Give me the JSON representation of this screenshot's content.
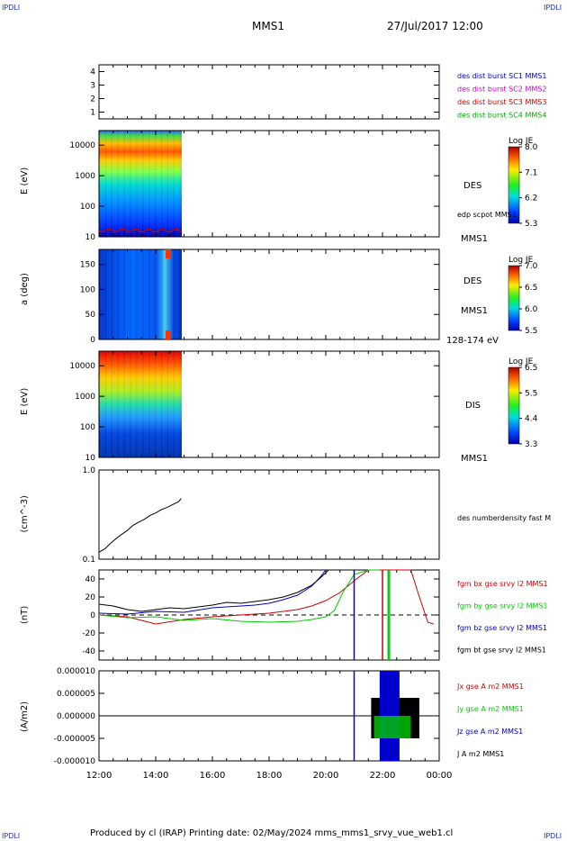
{
  "header": {
    "corner_left": "IPDLI",
    "corner_right": "IPDLI",
    "spacecraft": "MMS1",
    "date_time": "27/Jul/2017 12:00"
  },
  "footer": {
    "produced": "Produced by cl (IRAP)   Printing date: 02/May/2024   mms_mms1_srvy_vue_web1.cl",
    "corner_left": "IPDLI",
    "corner_right": "IPDLI"
  },
  "colors": {
    "mms1": "#0000cc",
    "mms2": "#cc00cc",
    "mms3": "#cc0000",
    "mms4": "#00aa00",
    "bx": "#cc0000",
    "by": "#00cc00",
    "bz": "#0000cc",
    "bt": "#000000"
  },
  "chart_data": [
    {
      "type": "line",
      "panel": "burst-availability",
      "ylim": [
        0.5,
        4.5
      ],
      "yticks": [
        "1",
        "2",
        "3",
        "4"
      ],
      "legend": [
        {
          "label": "des dist burst SC1 MMS1",
          "color": "#0000cc"
        },
        {
          "label": "des dist burst SC2 MMS2",
          "color": "#cc00cc"
        },
        {
          "label": "des dist burst SC3 MMS3",
          "color": "#cc0000"
        },
        {
          "label": "des dist burst SC4 MMS4",
          "color": "#00aa00"
        }
      ]
    },
    {
      "type": "heatmap",
      "panel": "des-energy-spectrogram",
      "ylabel": "E (eV)",
      "yscale": "log",
      "ylim": [
        10,
        30000
      ],
      "yticks": [
        "10",
        "100",
        "1000",
        "10000"
      ],
      "data_x_range": [
        "12:00",
        "14:55"
      ],
      "colorbar": {
        "title": "Log JE",
        "ticks": [
          "8.0",
          "7.1",
          "6.2",
          "5.3"
        ]
      },
      "right_labels": [
        "DES",
        "edp scpot MMS1",
        "MMS1"
      ]
    },
    {
      "type": "heatmap",
      "panel": "des-pitch-angle",
      "ylabel": "a (deg)",
      "ylim": [
        0,
        180
      ],
      "yticks": [
        "0",
        "50",
        "100",
        "150"
      ],
      "data_x_range": [
        "12:00",
        "14:55"
      ],
      "colorbar": {
        "title": "Log JE",
        "ticks": [
          "7.0",
          "6.5",
          "6.0",
          "5.5"
        ]
      },
      "right_labels": [
        "DES",
        "MMS1",
        "128-174 eV"
      ]
    },
    {
      "type": "heatmap",
      "panel": "dis-energy-spectrogram",
      "ylabel": "E (eV)",
      "yscale": "log",
      "ylim": [
        10,
        30000
      ],
      "yticks": [
        "10",
        "100",
        "1000",
        "10000"
      ],
      "data_x_range": [
        "12:00",
        "14:55"
      ],
      "colorbar": {
        "title": "Log JE",
        "ticks": [
          "6.5",
          "5.5",
          "4.4",
          "3.3"
        ]
      },
      "right_labels": [
        "DIS",
        "MMS1"
      ]
    },
    {
      "type": "line",
      "panel": "density",
      "ylabel": "(cm^-3)",
      "yscale": "log",
      "ylim": [
        0.1,
        1.0
      ],
      "yticks": [
        "0.1",
        "1.0"
      ],
      "series": [
        {
          "name": "des numberdensity fast M",
          "x": [
            12.0,
            12.2,
            12.4,
            12.6,
            12.8,
            13.0,
            13.2,
            13.4,
            13.6,
            13.8,
            14.0,
            14.2,
            14.4,
            14.6,
            14.8,
            14.9
          ],
          "values": [
            0.12,
            0.13,
            0.15,
            0.17,
            0.19,
            0.21,
            0.24,
            0.26,
            0.28,
            0.31,
            0.33,
            0.36,
            0.38,
            0.41,
            0.44,
            0.48
          ],
          "color": "#000000"
        }
      ]
    },
    {
      "type": "line",
      "panel": "magnetic-field",
      "ylabel": "(nT)",
      "ylim": [
        -50,
        50
      ],
      "yticks": [
        "-40",
        "-20",
        "0",
        "20",
        "40"
      ],
      "series": [
        {
          "name": "fgm bx gse srvy l2 MMS1",
          "color": "#cc0000",
          "x": [
            12.0,
            13.0,
            14.0,
            15.0,
            16.0,
            17.0,
            18.0,
            18.5,
            19.0,
            19.5,
            20.0,
            20.5,
            21.0,
            21.5,
            22.0,
            22.5,
            23.0,
            23.3,
            23.6,
            23.8
          ],
          "values": [
            0,
            -2,
            -10,
            -5,
            -2,
            0,
            2,
            4,
            6,
            10,
            16,
            25,
            38,
            50,
            50,
            50,
            50,
            20,
            -8,
            -10
          ]
        },
        {
          "name": "fgm by gse srvy l2 MMS1",
          "color": "#00cc00",
          "x": [
            12.0,
            13.0,
            14.0,
            15.0,
            16.0,
            17.0,
            18.0,
            19.0,
            19.5,
            20.0,
            20.3,
            20.6,
            21.0,
            21.5,
            21.9
          ],
          "values": [
            0,
            -3,
            -2,
            -6,
            -4,
            -7,
            -8,
            -7,
            -5,
            -2,
            5,
            25,
            45,
            50,
            50
          ]
        },
        {
          "name": "fgm bz gse srvy l2 MMS1",
          "color": "#0000cc",
          "x": [
            12.0,
            13.0,
            14.0,
            15.0,
            16.0,
            17.0,
            17.5,
            18.0,
            18.5,
            19.0,
            19.5,
            19.8,
            20.0
          ],
          "values": [
            2,
            1,
            4,
            3,
            8,
            10,
            11,
            13,
            17,
            22,
            32,
            42,
            50
          ]
        },
        {
          "name": "fgm bt gse srvy l2 MMS1",
          "color": "#000000",
          "x": [
            12.0,
            12.5,
            13.0,
            13.5,
            14.0,
            14.5,
            15.0,
            15.5,
            16.0,
            16.5,
            17.0,
            17.5,
            18.0,
            18.5,
            19.0,
            19.5,
            19.8,
            20.1
          ],
          "values": [
            12,
            10,
            6,
            4,
            6,
            8,
            7,
            9,
            11,
            14,
            13,
            15,
            17,
            20,
            25,
            33,
            41,
            50
          ]
        }
      ]
    },
    {
      "type": "line",
      "panel": "current-density",
      "ylabel": "(A/m2)",
      "ylim": [
        -1e-05,
        1e-05
      ],
      "yticks": [
        "0.000010",
        "0.000005",
        "0.000000",
        "-0.000005",
        "-0.000010"
      ],
      "series": [
        {
          "name": "Jx gse A m2 MMS1",
          "color": "#cc0000"
        },
        {
          "name": "Jy gse A m2 MMS1",
          "color": "#00cc00"
        },
        {
          "name": "Jz gse A m2 MMS1",
          "color": "#0000cc"
        },
        {
          "name": "J A m2 MMS1",
          "color": "#000000"
        }
      ]
    }
  ],
  "xaxis": {
    "ticks": [
      "12:00",
      "14:00",
      "16:00",
      "18:00",
      "20:00",
      "22:00",
      "00:00"
    ],
    "range_hours": [
      12,
      24
    ]
  }
}
